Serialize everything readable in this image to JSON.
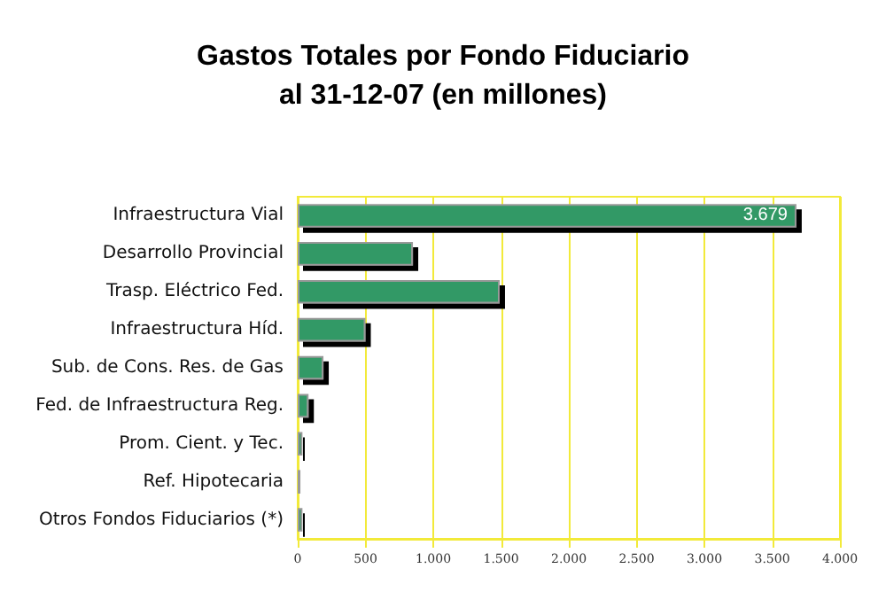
{
  "chart_data": {
    "type": "bar",
    "orientation": "horizontal",
    "title": "Gastos Totales por Fondo Fiduciario\nal 31-12-07 (en millones)",
    "categories": [
      "Infraestructura Vial",
      "Desarrollo Provincial",
      "Trasp. Eléctrico Fed.",
      "Infraestructura Híd.",
      "Sub. de Cons. Res. de Gas",
      "Fed. de Infraestructura Reg.",
      "Prom. Cient. y Tec.",
      "Ref. Hipotecaria",
      "Otros Fondos Fiduciarios (*)"
    ],
    "values": [
      3679,
      850,
      1490,
      500,
      190,
      80,
      35,
      20,
      35
    ],
    "value_labels": [
      "3.679",
      null,
      null,
      null,
      null,
      null,
      null,
      null,
      null
    ],
    "color": "#339966",
    "xlim": [
      0,
      4000
    ],
    "xticks": [
      0,
      {
        "value": 500,
        "label": "500"
      },
      {
        "value": 1000,
        "label": "1.000"
      },
      {
        "value": 1500,
        "label": "1.500"
      },
      {
        "value": 2000,
        "label": "2.000"
      },
      {
        "value": 2500,
        "label": "2.500"
      },
      {
        "value": 3000,
        "label": "3.000"
      },
      {
        "value": 3500,
        "label": "3.500"
      },
      {
        "value": 4000,
        "label": "4.000"
      }
    ],
    "grid": "x"
  }
}
